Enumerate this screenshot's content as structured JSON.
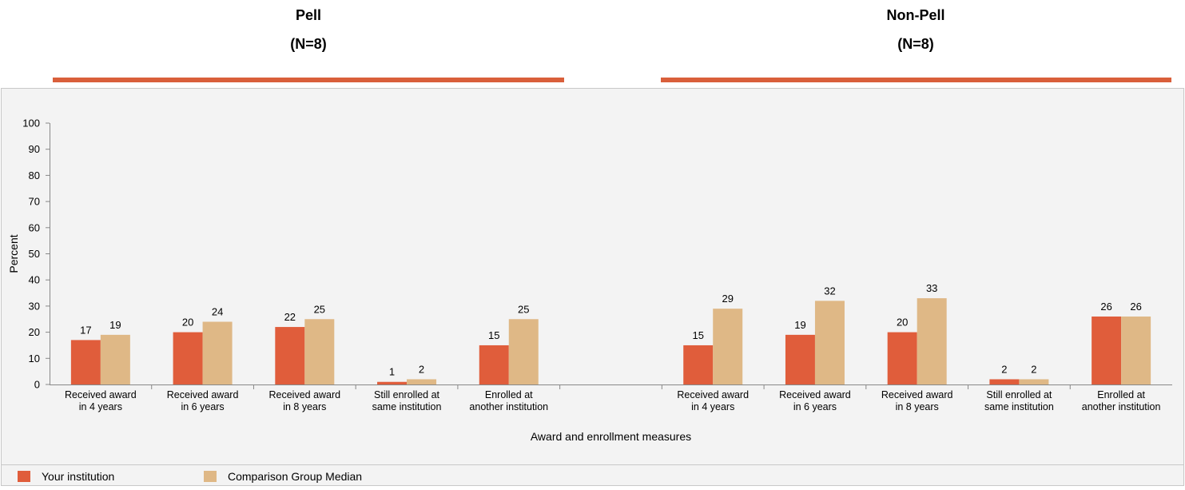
{
  "panels": [
    {
      "title": "Pell",
      "subtitle": "(N=8)"
    },
    {
      "title": "Non-Pell",
      "subtitle": "(N=8)"
    }
  ],
  "colors": {
    "series1": "#e05d3b",
    "series2": "#dfb886",
    "header_line": "#d95f3b",
    "chart_bg": "#f3f3f3",
    "border": "#c8c8c8"
  },
  "chart_data": {
    "type": "bar",
    "ylabel": "Percent",
    "xlabel": "Award and enrollment measures",
    "ylim": [
      0,
      100
    ],
    "yticks": [
      0,
      10,
      20,
      30,
      40,
      50,
      60,
      70,
      80,
      90,
      100
    ],
    "grid": false,
    "legend_position": "bottom-left",
    "groups": [
      {
        "name": "Pell",
        "categories": [
          [
            "Received award",
            "in 4 years"
          ],
          [
            "Received award",
            "in 6 years"
          ],
          [
            "Received award",
            "in 8 years"
          ],
          [
            "Still enrolled at",
            "same institution"
          ],
          [
            "Enrolled at",
            "another institution"
          ]
        ],
        "series": [
          {
            "name": "Your institution",
            "values": [
              17,
              20,
              22,
              1,
              15
            ]
          },
          {
            "name": "Comparison Group Median",
            "values": [
              19,
              24,
              25,
              2,
              25
            ]
          }
        ]
      },
      {
        "name": "Non-Pell",
        "categories": [
          [
            "Received award",
            "in 4 years"
          ],
          [
            "Received award",
            "in 6 years"
          ],
          [
            "Received award",
            "in 8 years"
          ],
          [
            "Still enrolled at",
            "same institution"
          ],
          [
            "Enrolled at",
            "another institution"
          ]
        ],
        "series": [
          {
            "name": "Your institution",
            "values": [
              15,
              19,
              20,
              2,
              26
            ]
          },
          {
            "name": "Comparison Group Median",
            "values": [
              29,
              32,
              33,
              2,
              26
            ]
          }
        ]
      }
    ]
  }
}
